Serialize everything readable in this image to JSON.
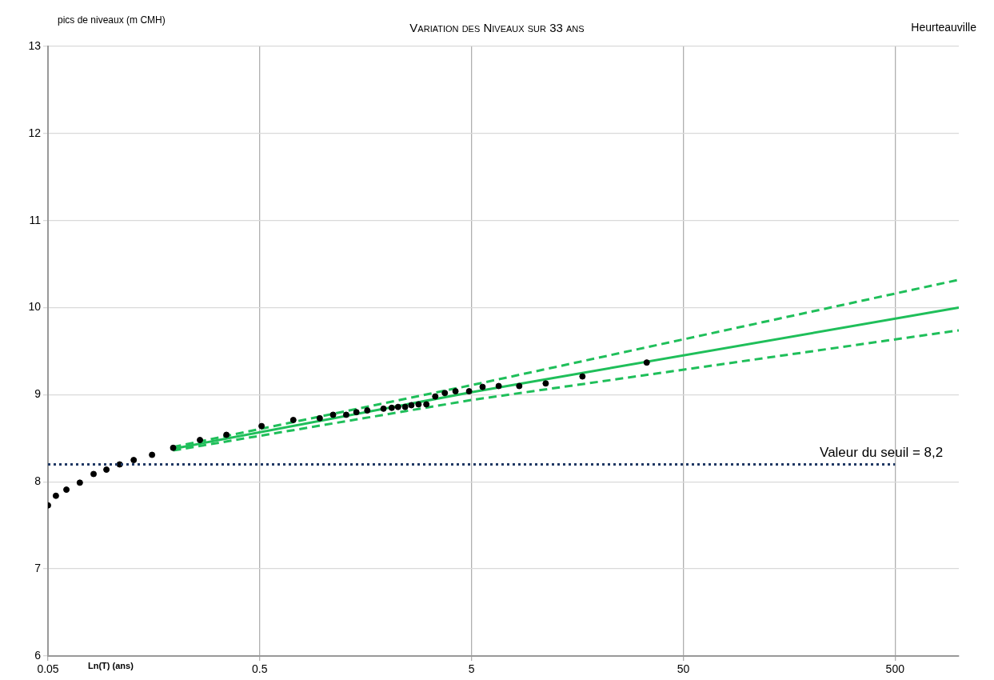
{
  "chart_data": {
    "type": "scatter",
    "title": "Variation des Niveaux sur 33 ans",
    "subtitle": "Heurteauville",
    "xlabel": "Ln(T) (ans)",
    "ylabel": "pics de niveaux (m CMH)",
    "log": "x",
    "xlim": [
      0.05,
      1000
    ],
    "xticks": [
      0.05,
      0.5,
      5,
      50,
      500
    ],
    "ylim": [
      6,
      13
    ],
    "yticks": [
      6,
      7,
      8,
      9,
      10,
      11,
      12,
      13
    ],
    "grid": true,
    "legend": false,
    "marker": "circle",
    "series": [
      {
        "color": "#000000",
        "x": [
          0.05,
          0.0545,
          0.0611,
          0.0707,
          0.0821,
          0.0944,
          0.109,
          0.127,
          0.155,
          0.195,
          0.261,
          0.348,
          0.51,
          0.72,
          0.96,
          1.11,
          1.28,
          1.43,
          1.61,
          1.92,
          2.1,
          2.25,
          2.43,
          2.6,
          2.81,
          3.06,
          3.37,
          3.74,
          4.2,
          4.87,
          5.64,
          6.72,
          8.4,
          11.2,
          16.7,
          33.6
        ],
        "values": [
          7.73,
          7.84,
          7.91,
          7.99,
          8.09,
          8.14,
          8.2,
          8.25,
          8.31,
          8.39,
          8.48,
          8.54,
          8.64,
          8.71,
          8.73,
          8.77,
          8.77,
          8.8,
          8.82,
          8.84,
          8.85,
          8.86,
          8.86,
          8.88,
          8.89,
          8.89,
          8.98,
          9.02,
          9.04,
          9.04,
          9.09,
          9.1,
          9.1,
          9.13,
          9.21,
          9.37
        ]
      },
      {
        "type": "line",
        "color": "#1fbf5a",
        "line_style": "solid",
        "marker": "none",
        "x": [
          0.195,
          5,
          1000
        ],
        "values": [
          8.38,
          9.03,
          10.0
        ]
      },
      {
        "type": "line",
        "color": "#1fbf5a",
        "line_style": "dashed",
        "marker": "none",
        "x": [
          0.195,
          5,
          1000
        ],
        "values": [
          8.4,
          9.11,
          10.32
        ]
      },
      {
        "type": "line",
        "color": "#1fbf5a",
        "line_style": "dashed",
        "marker": "none",
        "x": [
          0.195,
          5,
          1000
        ],
        "values": [
          8.36,
          8.94,
          9.74
        ]
      }
    ],
    "ref_lines": [
      {
        "axis": "y",
        "value": 8.2,
        "label": "Valeur du seuil = 8,2",
        "color": "#1f3864",
        "line_style": "dotted"
      }
    ]
  }
}
